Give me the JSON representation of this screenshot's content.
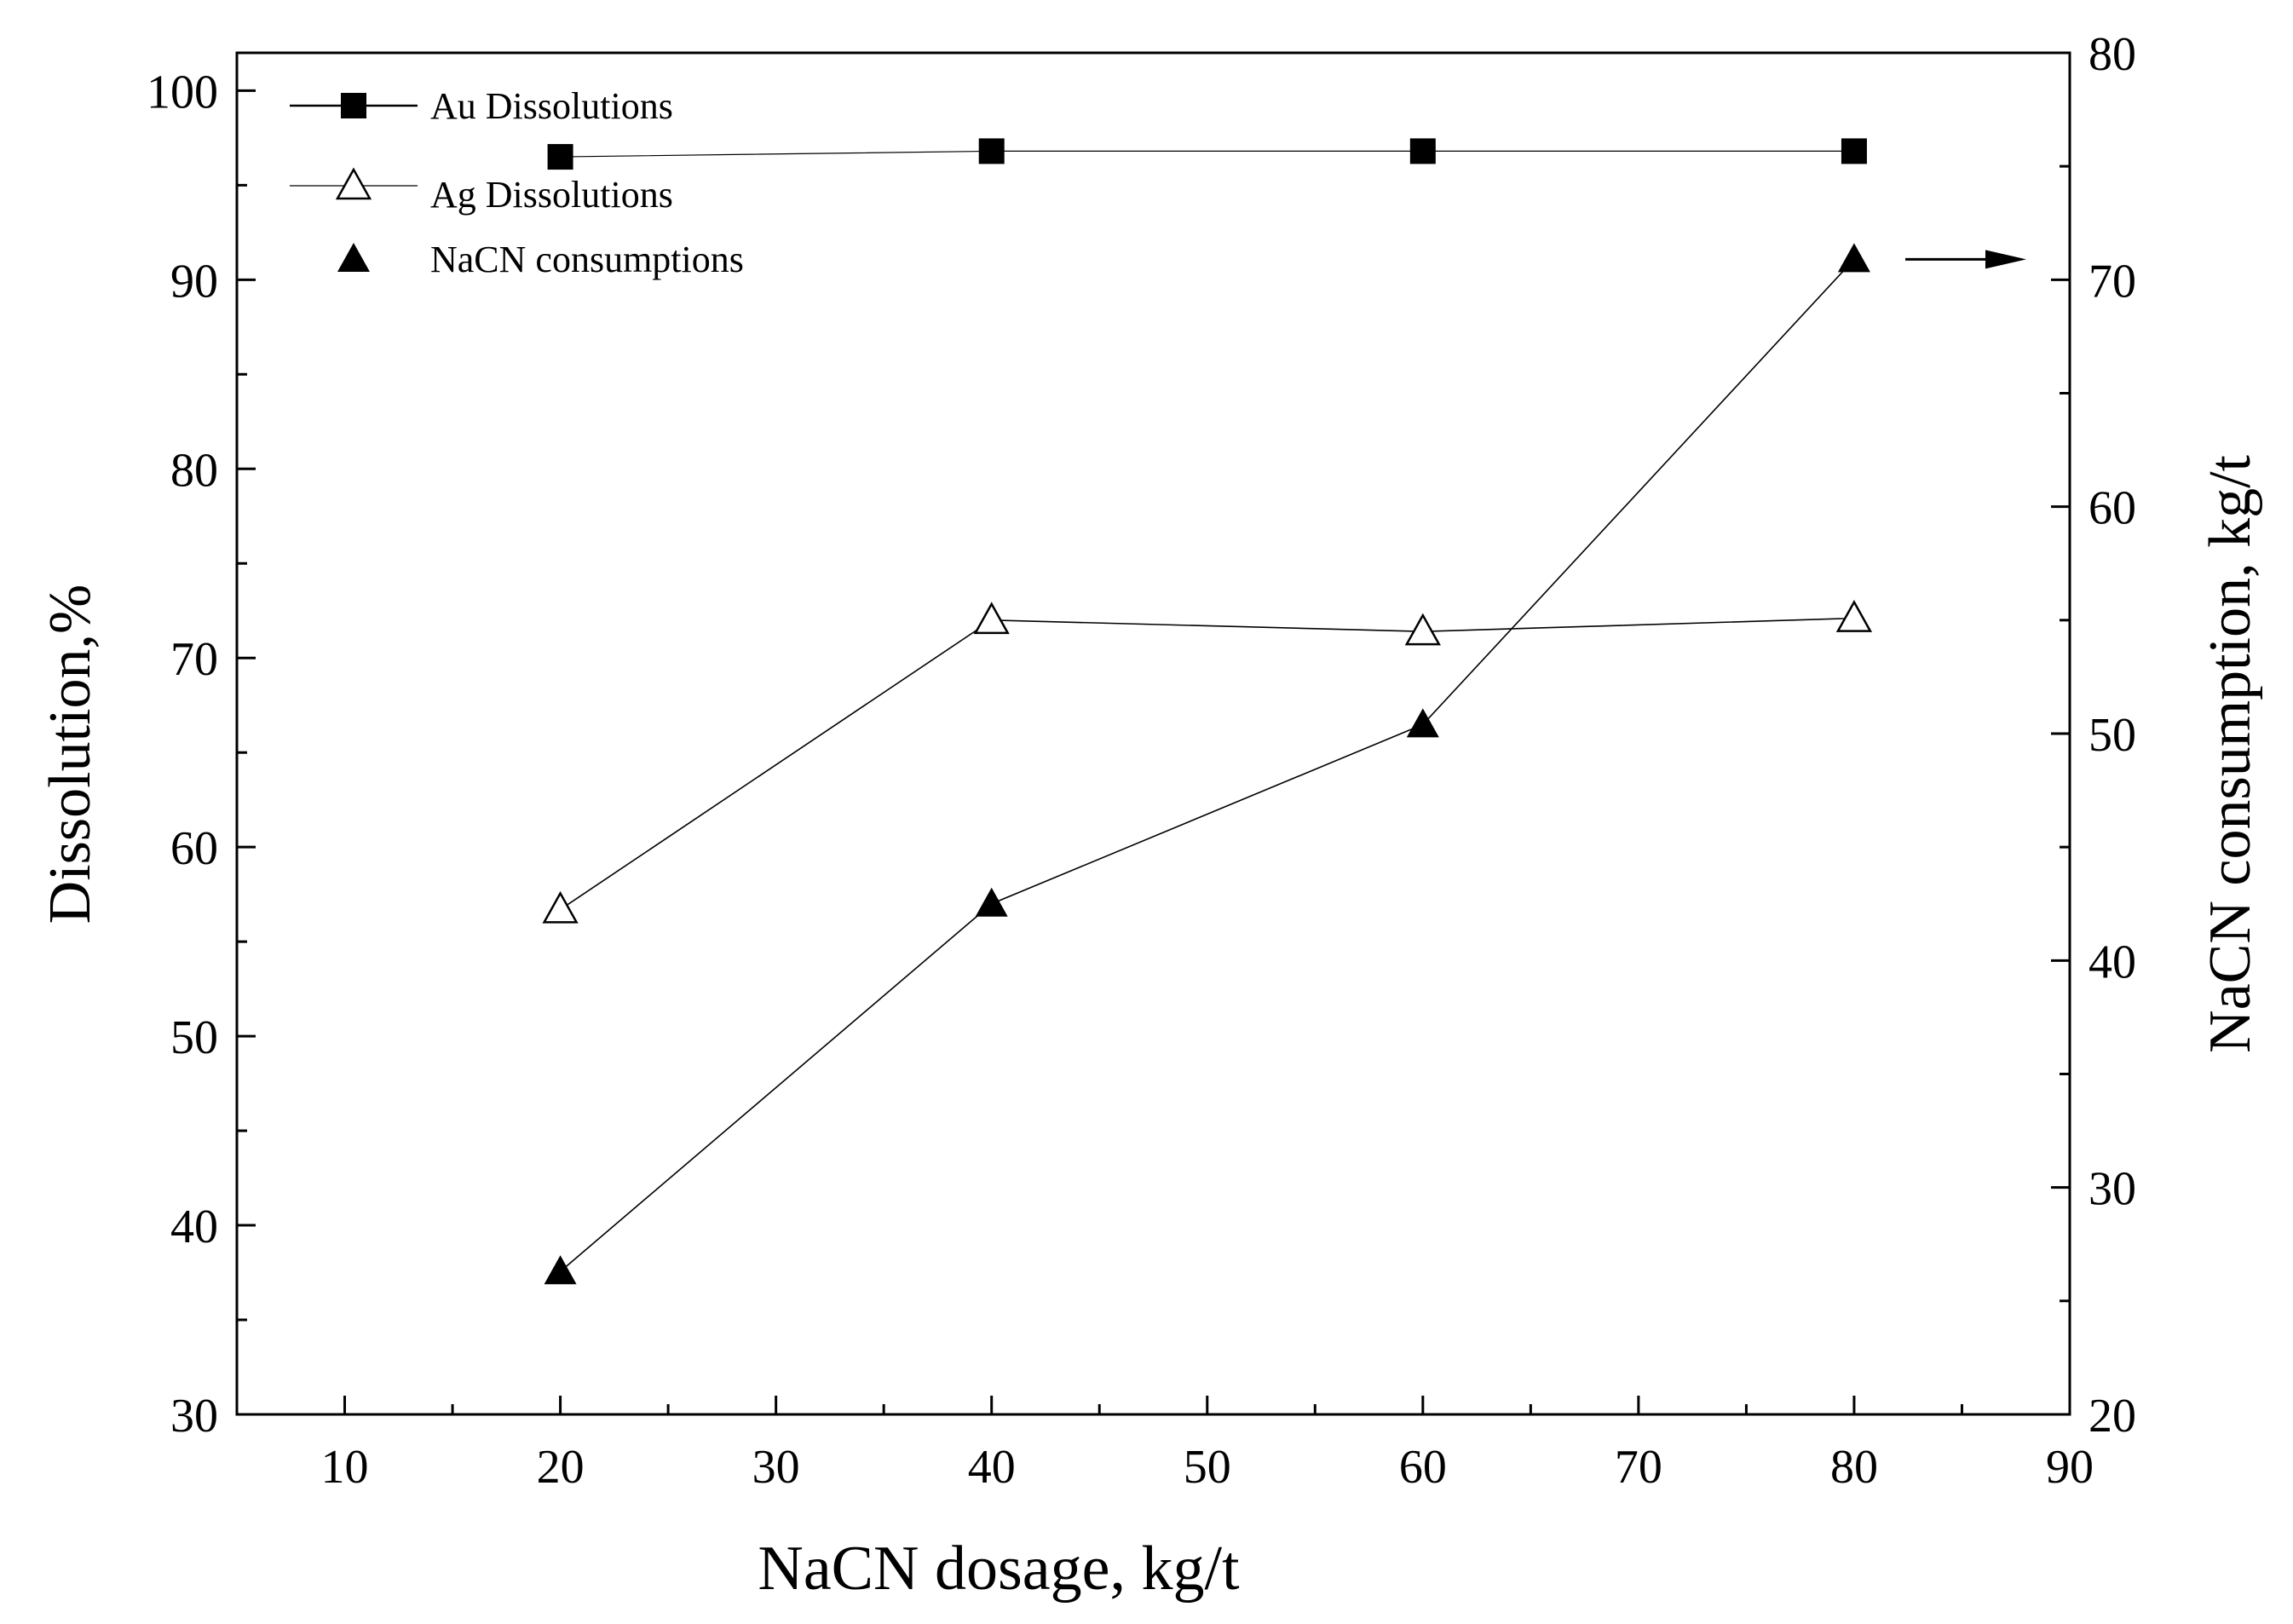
{
  "chart_data": {
    "type": "line",
    "xlabel": "NaCN dosage, kg/t",
    "ylabel": "Dissolution,%",
    "y2label": "NaCN consumption, kg/t",
    "xlim": [
      5,
      90
    ],
    "ylim": [
      30,
      102
    ],
    "y2lim": [
      20,
      80
    ],
    "xticks": [
      10,
      20,
      30,
      40,
      50,
      60,
      70,
      80,
      90
    ],
    "yticks": [
      30,
      40,
      50,
      60,
      70,
      80,
      90,
      100
    ],
    "y2ticks": [
      20,
      30,
      40,
      50,
      60,
      70,
      80
    ],
    "x": [
      20,
      40,
      60,
      80
    ],
    "series": [
      {
        "name": "Au Dissolutions",
        "axis": "left",
        "marker": "filled-square",
        "values": [
          96.5,
          96.8,
          96.8,
          96.8
        ]
      },
      {
        "name": "Ag Dissolutions",
        "axis": "left",
        "marker": "open-triangle",
        "values": [
          56.7,
          72.0,
          71.4,
          72.1
        ]
      },
      {
        "name": "NaCN consumptions",
        "axis": "right",
        "marker": "filled-triangle",
        "values": [
          26.3,
          42.5,
          50.4,
          70.9
        ]
      }
    ],
    "legend_position": "top-left",
    "annotation": "arrow pointing to right axis from NaCN consumptions at x=80",
    "grid": false
  }
}
